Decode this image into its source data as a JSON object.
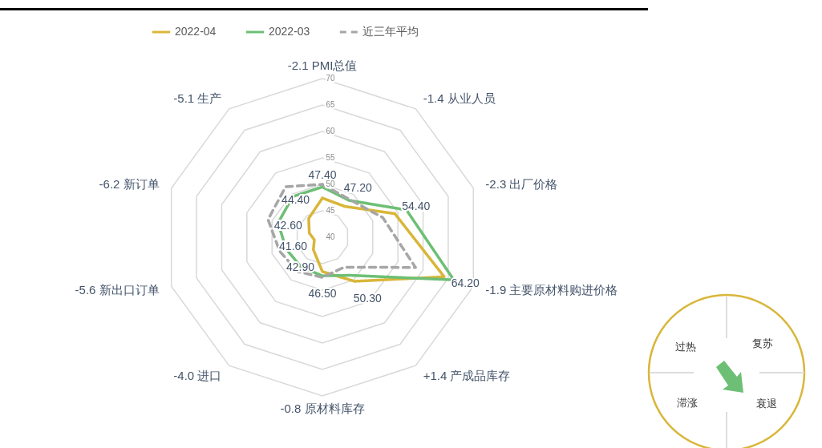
{
  "chart_data": {
    "type": "radar",
    "categories": [
      "-2.1  PMI总值",
      "-1.4  从业人员",
      "-2.3  出厂价格",
      "-1.9  主要原材料购进价格",
      "+1.4 产成品库存",
      "-0.8  原材料库存",
      "-4.0  进口",
      "-5.6  新出口订单",
      "-6.2  新订单",
      "-5.1  生产"
    ],
    "series": [
      {
        "name": "2022-04",
        "color": "#d9b63a",
        "values": [
          47.4,
          47.2,
          54.4,
          64.2,
          50.3,
          46.5,
          42.9,
          41.6,
          42.6,
          44.4
        ],
        "value_labels": [
          "47.40",
          "47.20",
          "54.40",
          "64.20",
          "50.30",
          "46.50",
          "42.90",
          "41.60",
          "42.60",
          "44.40"
        ]
      },
      {
        "name": "2022-03",
        "color": "#6dbf75",
        "values": [
          49.5,
          48.6,
          56.7,
          66.1,
          48.9,
          47.3,
          46.9,
          47.2,
          48.8,
          49.5
        ]
      },
      {
        "name": "近三年平均",
        "color": "#a6a6a6",
        "line_style": "dashed",
        "values": [
          50.0,
          48.8,
          52.0,
          58.5,
          47.0,
          47.6,
          48.0,
          48.5,
          50.8,
          51.8
        ]
      }
    ],
    "ylim": [
      40,
      70
    ],
    "yticks": [
      40,
      45,
      50,
      55,
      60,
      65,
      70
    ],
    "grid": true,
    "legend": "top",
    "marker": "none",
    "annotations": [
      "过热",
      "复苏",
      "滞涨",
      "衰退"
    ]
  }
}
